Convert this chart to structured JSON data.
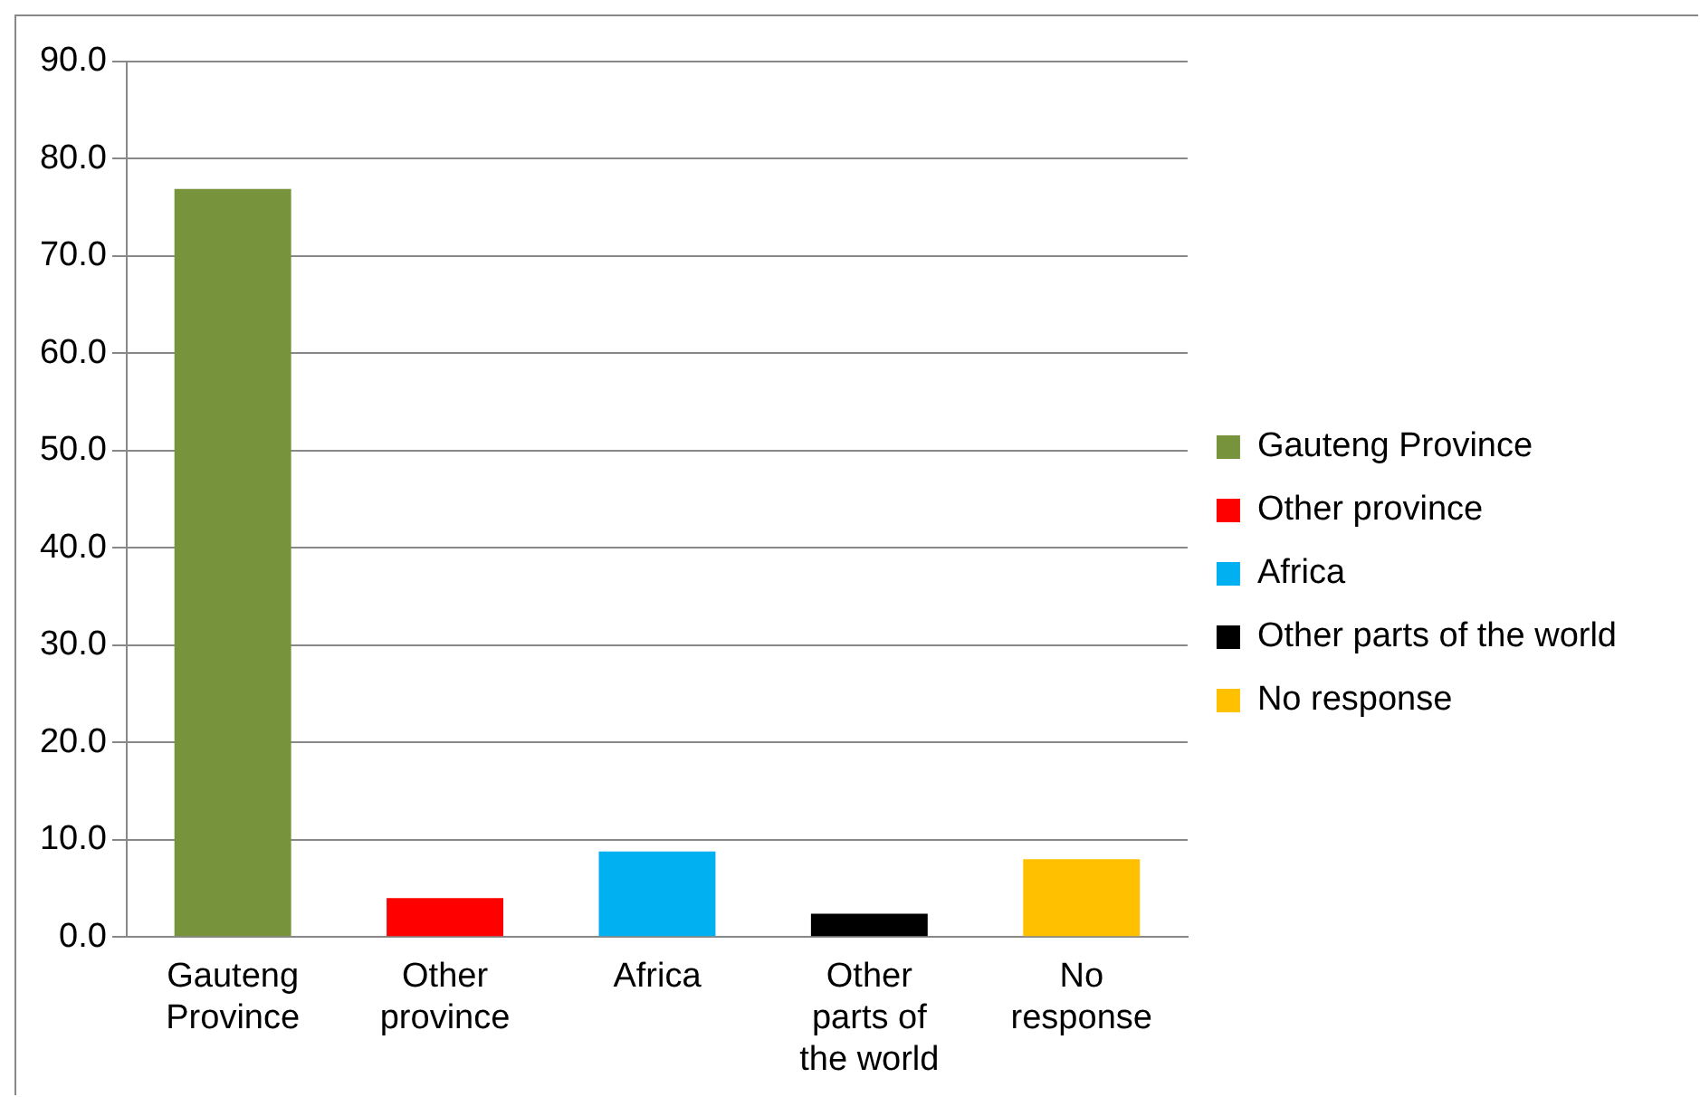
{
  "chart_data": {
    "type": "bar",
    "categories": [
      "Gauteng Province",
      "Other province",
      "Africa",
      "Other parts of the world",
      "No response"
    ],
    "series": [
      {
        "name": "Gauteng Province",
        "color": "#77933c",
        "values": [
          76.9,
          null,
          null,
          null,
          null
        ]
      },
      {
        "name": "Other province",
        "color": "#ff0000",
        "values": [
          null,
          4.0,
          null,
          null,
          null
        ]
      },
      {
        "name": "Africa",
        "color": "#00b0f0",
        "values": [
          null,
          null,
          8.8,
          null,
          null
        ]
      },
      {
        "name": "Other parts of the world",
        "color": "#000000",
        "values": [
          null,
          null,
          null,
          2.4,
          null
        ]
      },
      {
        "name": "No response",
        "color": "#ffc000",
        "values": [
          null,
          null,
          null,
          null,
          8.0
        ]
      }
    ],
    "ylim": [
      0,
      90
    ],
    "yticks": [
      {
        "value": 0,
        "label": "0.0"
      },
      {
        "value": 10,
        "label": "10.0"
      },
      {
        "value": 20,
        "label": "20.0"
      },
      {
        "value": 30,
        "label": "30.0"
      },
      {
        "value": 40,
        "label": "40.0"
      },
      {
        "value": 50,
        "label": "50.0"
      },
      {
        "value": 60,
        "label": "60.0"
      },
      {
        "value": 70,
        "label": "70.0"
      },
      {
        "value": 80,
        "label": "80.0"
      },
      {
        "value": 90,
        "label": "90.0"
      }
    ],
    "grid": "y",
    "legend": "right"
  }
}
